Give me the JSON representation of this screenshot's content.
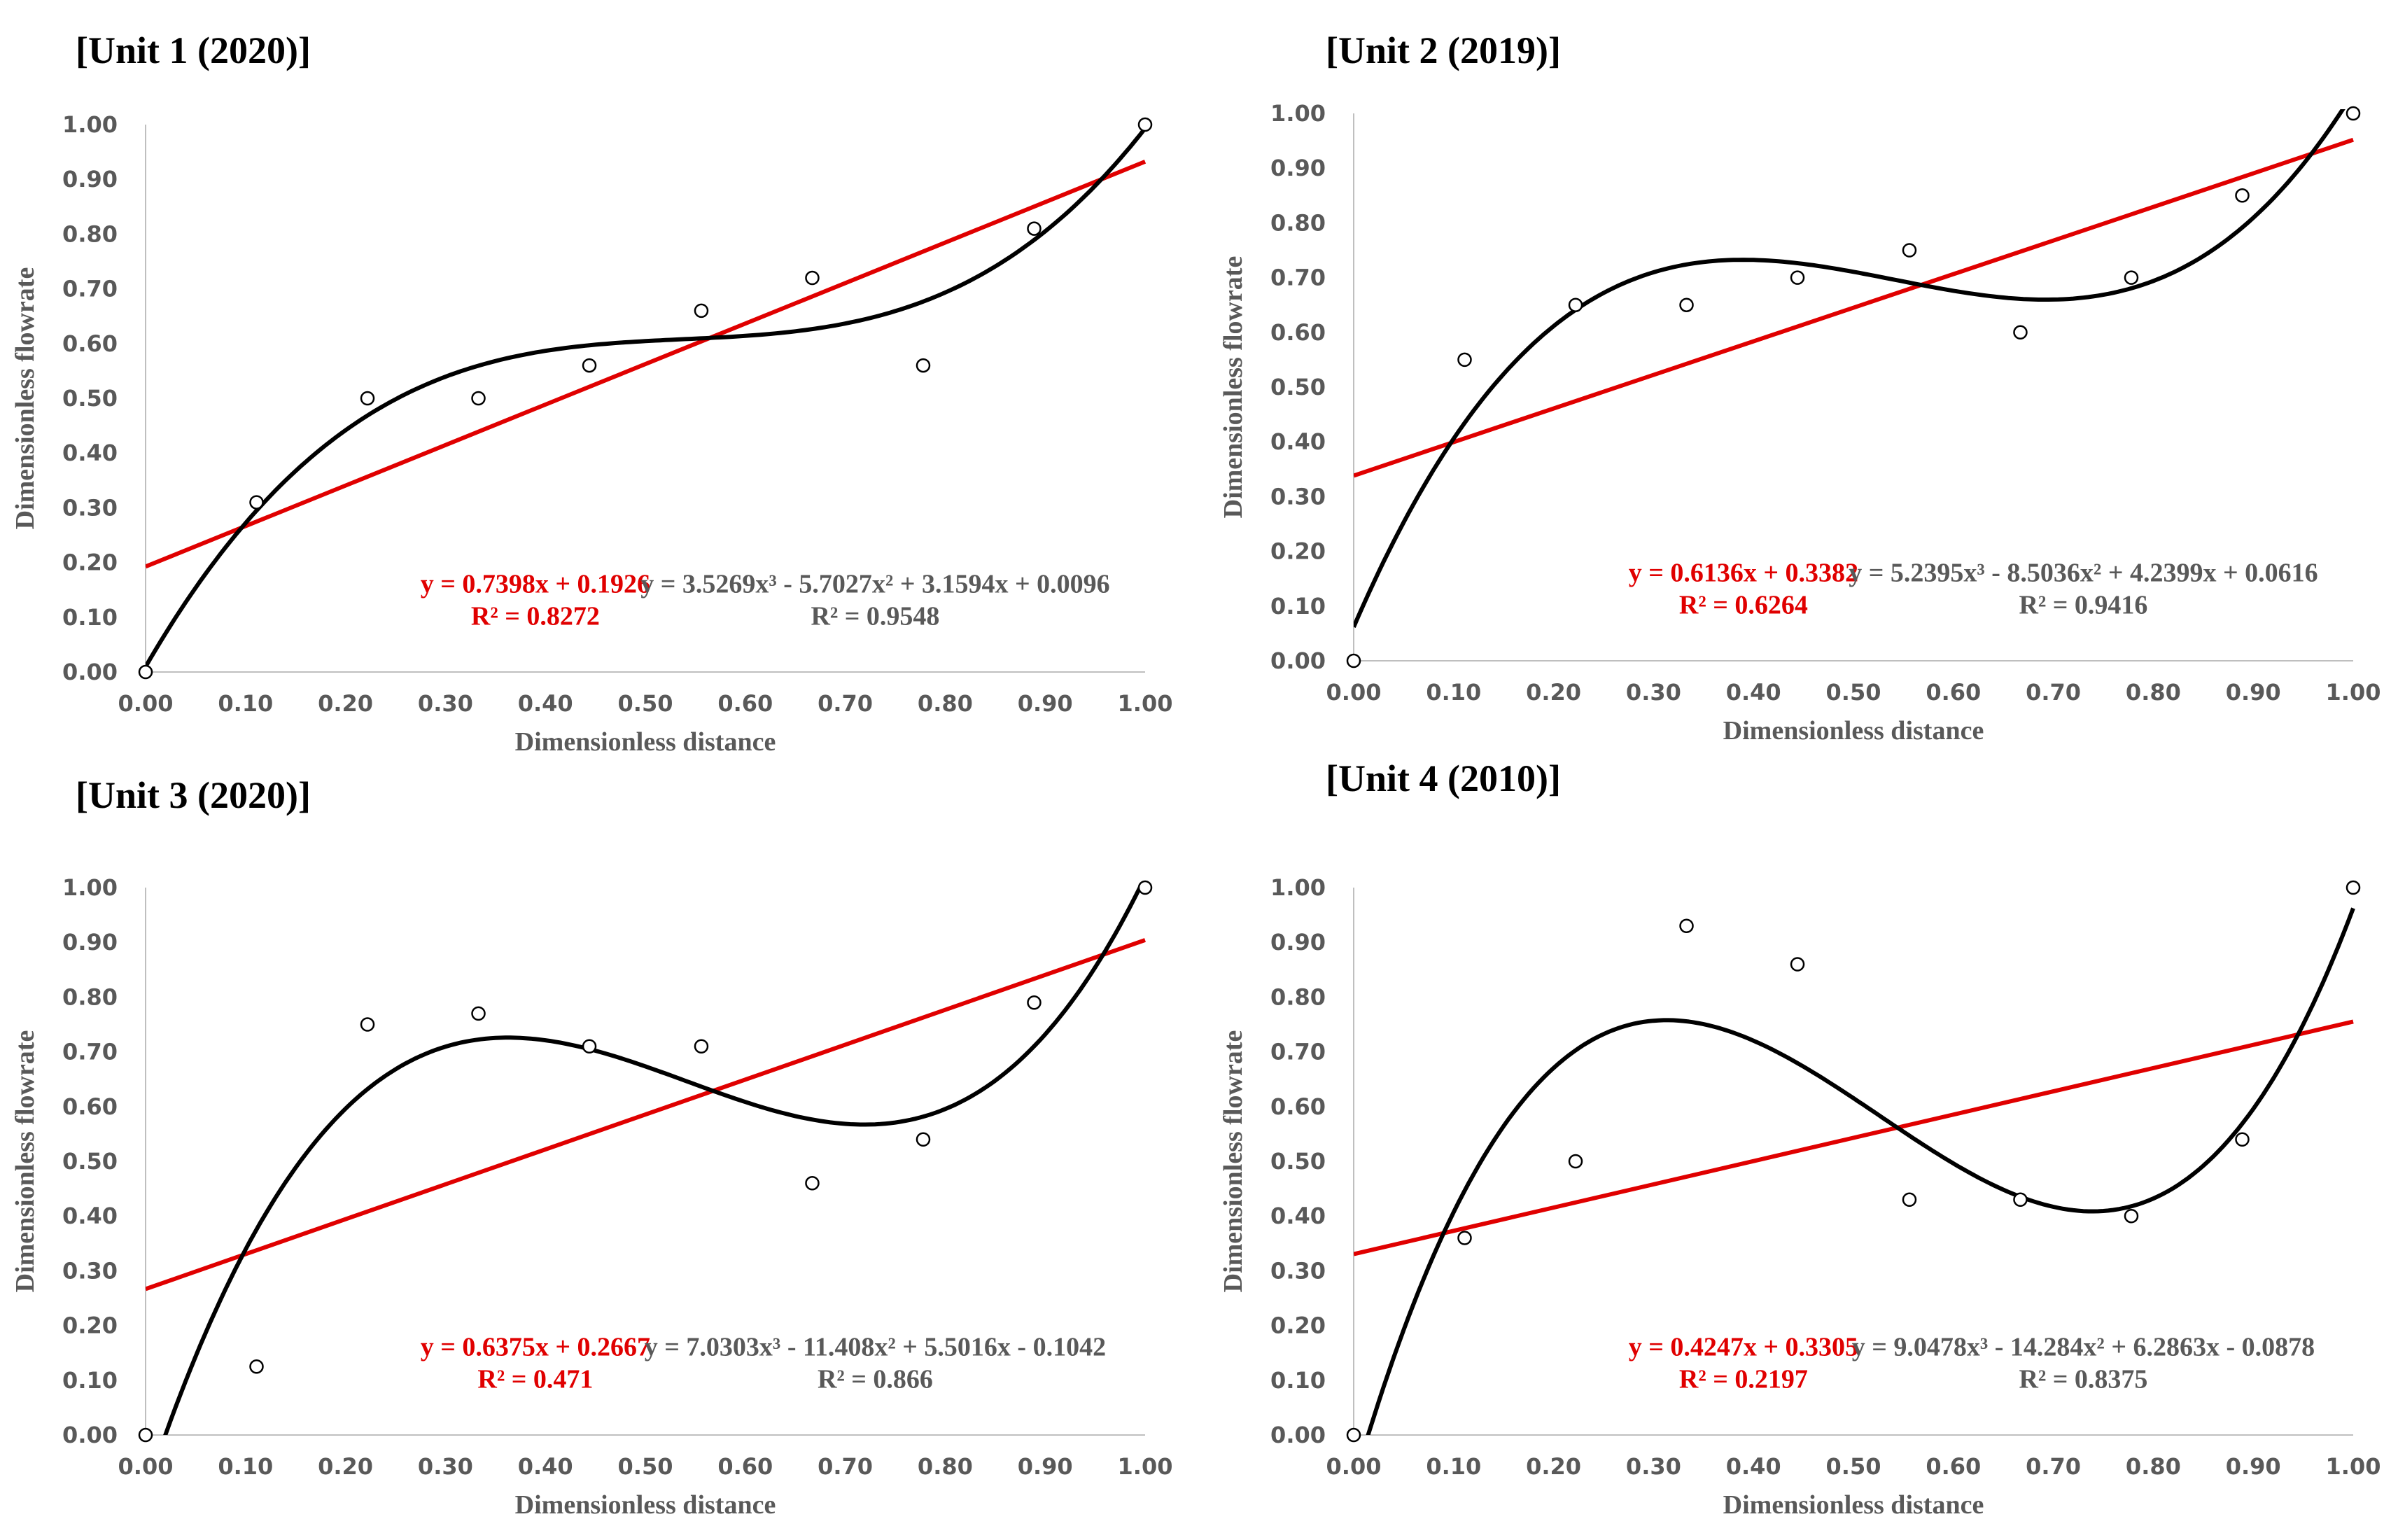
{
  "chart_data": [
    {
      "type": "scatter",
      "title": "[Unit 1 (2020)]",
      "xlabel": "Dimensionless distance",
      "ylabel": "Dimensionless flowrate",
      "xlim": [
        0,
        1
      ],
      "ylim": [
        0,
        1
      ],
      "x_ticks": [
        "0.00",
        "0.10",
        "0.20",
        "0.30",
        "0.40",
        "0.50",
        "0.60",
        "0.70",
        "0.80",
        "0.90",
        "1.00"
      ],
      "y_ticks": [
        "0.00",
        "0.10",
        "0.20",
        "0.30",
        "0.40",
        "0.50",
        "0.60",
        "0.70",
        "0.80",
        "0.90",
        "1.00"
      ],
      "points": {
        "x": [
          0,
          0.111,
          0.222,
          0.333,
          0.444,
          0.556,
          0.667,
          0.778,
          0.889,
          1.0
        ],
        "y": [
          0,
          0.31,
          0.5,
          0.5,
          0.56,
          0.66,
          0.72,
          0.56,
          0.81,
          1.0
        ]
      },
      "linear_fit": {
        "slope": 0.7398,
        "intercept": 0.1926,
        "equation": "y = 0.7398x + 0.1926",
        "r2": "R² = 0.8272",
        "color": "#e00000"
      },
      "poly_fit": {
        "coef": [
          3.5269,
          -5.7027,
          3.1594,
          0.0096
        ],
        "equation": "y = 3.5269x³ - 5.7027x² + 3.1594x + 0.0096",
        "r2": "R² = 0.9548",
        "color": "#000000"
      }
    },
    {
      "type": "scatter",
      "title": "[Unit 2 (2019)]",
      "xlabel": "Dimensionless distance",
      "ylabel": "Dimensionless flowrate",
      "xlim": [
        0,
        1
      ],
      "ylim": [
        0,
        1
      ],
      "x_ticks": [
        "0.00",
        "0.10",
        "0.20",
        "0.30",
        "0.40",
        "0.50",
        "0.60",
        "0.70",
        "0.80",
        "0.90",
        "1.00"
      ],
      "y_ticks": [
        "0.00",
        "0.10",
        "0.20",
        "0.30",
        "0.40",
        "0.50",
        "0.60",
        "0.70",
        "0.80",
        "0.90",
        "1.00"
      ],
      "points": {
        "x": [
          0,
          0.111,
          0.222,
          0.333,
          0.444,
          0.556,
          0.667,
          0.778,
          0.889,
          1.0
        ],
        "y": [
          0,
          0.55,
          0.65,
          0.65,
          0.7,
          0.75,
          0.6,
          0.7,
          0.85,
          1.0
        ]
      },
      "linear_fit": {
        "slope": 0.6136,
        "intercept": 0.3382,
        "equation": "y = 0.6136x + 0.3382",
        "r2": "R² = 0.6264",
        "color": "#e00000"
      },
      "poly_fit": {
        "coef": [
          5.2395,
          -8.5036,
          4.2399,
          0.0616
        ],
        "equation": "y = 5.2395x³ - 8.5036x² + 4.2399x + 0.0616",
        "r2": "R² = 0.9416",
        "color": "#000000"
      }
    },
    {
      "type": "scatter",
      "title": "[Unit 3 (2020)]",
      "xlabel": "Dimensionless distance",
      "ylabel": "Dimensionless flowrate",
      "xlim": [
        0,
        1
      ],
      "ylim": [
        0,
        1
      ],
      "x_ticks": [
        "0.00",
        "0.10",
        "0.20",
        "0.30",
        "0.40",
        "0.50",
        "0.60",
        "0.70",
        "0.80",
        "0.90",
        "1.00"
      ],
      "y_ticks": [
        "0.00",
        "0.10",
        "0.20",
        "0.30",
        "0.40",
        "0.50",
        "0.60",
        "0.70",
        "0.80",
        "0.90",
        "1.00"
      ],
      "points": {
        "x": [
          0,
          0.111,
          0.222,
          0.333,
          0.444,
          0.556,
          0.667,
          0.778,
          0.889,
          1.0
        ],
        "y": [
          0,
          0.125,
          0.75,
          0.77,
          0.71,
          0.71,
          0.46,
          0.54,
          0.79,
          1.0
        ]
      },
      "linear_fit": {
        "slope": 0.6375,
        "intercept": 0.2667,
        "equation": "y = 0.6375x + 0.2667",
        "r2": "R² = 0.471",
        "color": "#e00000"
      },
      "poly_fit": {
        "coef": [
          7.0303,
          -11.408,
          5.5016,
          -0.1042
        ],
        "equation": "y = 7.0303x³ - 11.408x² + 5.5016x - 0.1042",
        "r2": "R² = 0.866",
        "color": "#000000"
      }
    },
    {
      "type": "scatter",
      "title": "[Unit 4 (2010)]",
      "xlabel": "Dimensionless distance",
      "ylabel": "Dimensionless flowrate",
      "xlim": [
        0,
        1
      ],
      "ylim": [
        0,
        1
      ],
      "x_ticks": [
        "0.00",
        "0.10",
        "0.20",
        "0.30",
        "0.40",
        "0.50",
        "0.60",
        "0.70",
        "0.80",
        "0.90",
        "1.00"
      ],
      "y_ticks": [
        "0.00",
        "0.10",
        "0.20",
        "0.30",
        "0.40",
        "0.50",
        "0.60",
        "0.70",
        "0.80",
        "0.90",
        "1.00"
      ],
      "points": {
        "x": [
          0,
          0.111,
          0.222,
          0.333,
          0.444,
          0.556,
          0.667,
          0.778,
          0.889,
          1.0
        ],
        "y": [
          0,
          0.36,
          0.5,
          0.93,
          0.86,
          0.43,
          0.43,
          0.4,
          0.54,
          1.0
        ]
      },
      "linear_fit": {
        "slope": 0.4247,
        "intercept": 0.3305,
        "equation": "y = 0.4247x + 0.3305",
        "r2": "R² = 0.2197",
        "color": "#e00000"
      },
      "poly_fit": {
        "coef": [
          9.0478,
          -14.284,
          6.2863,
          -0.0878
        ],
        "equation": "y = 9.0478x³ - 14.284x² + 6.2863x - 0.0878",
        "r2": "R² = 0.8375",
        "color": "#000000"
      }
    }
  ]
}
